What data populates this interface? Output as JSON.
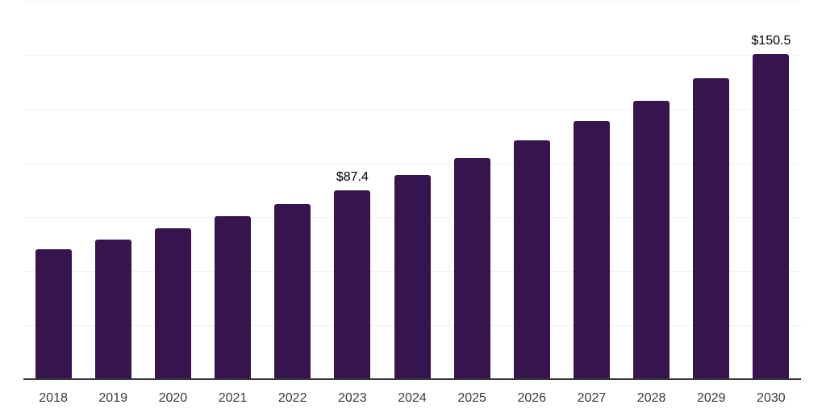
{
  "chart_data": {
    "type": "bar",
    "title": "",
    "xlabel": "",
    "ylabel": "",
    "categories": [
      "2018",
      "2019",
      "2020",
      "2021",
      "2022",
      "2023",
      "2024",
      "2025",
      "2026",
      "2027",
      "2028",
      "2029",
      "2030"
    ],
    "values": [
      60.0,
      64.6,
      69.8,
      75.4,
      81.0,
      87.4,
      94.5,
      102.1,
      110.3,
      119.3,
      128.9,
      139.3,
      150.5
    ],
    "bar_labels": [
      "",
      "",
      "",
      "",
      "",
      "$87.4",
      "",
      "",
      "",
      "",
      "",
      "",
      "$150.5"
    ],
    "ylim": [
      0,
      175
    ],
    "gridline_step": 25,
    "grid": "horizontal",
    "legend": "none",
    "y_axis_ticks_visible": false,
    "bar_color": "#36154e",
    "axis_line_color": "#383838",
    "gridline_color": "#f2f2f2",
    "x_label_color": "#3a3a3a",
    "value_label_color": "#000000",
    "background_color": "#ffffff"
  }
}
